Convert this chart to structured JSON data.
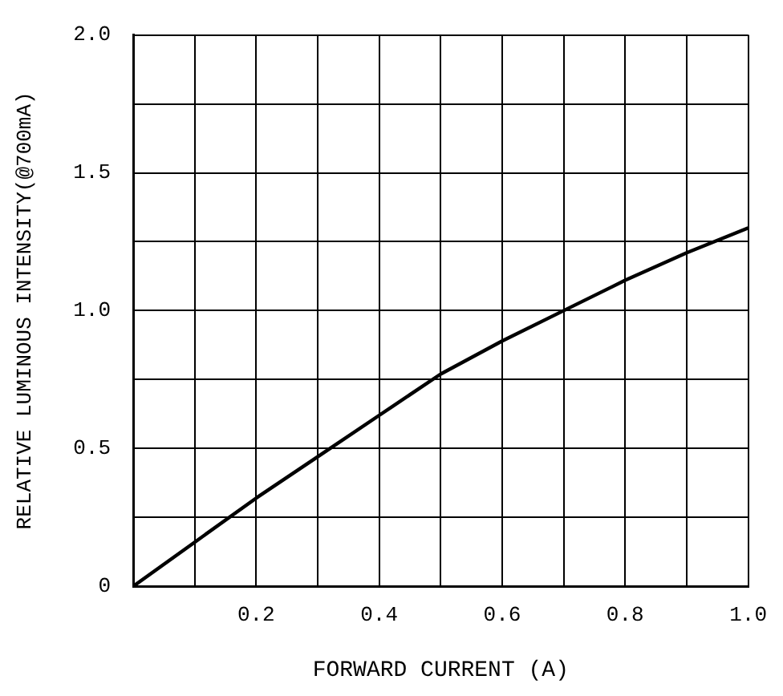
{
  "chart_data": {
    "type": "line",
    "xlabel": "FORWARD CURRENT (A)",
    "ylabel": "RELATIVE LUMINOUS INTENSITY(@700mA)",
    "x": [
      0,
      0.1,
      0.2,
      0.3,
      0.4,
      0.5,
      0.6,
      0.7,
      0.8,
      0.9,
      1.0
    ],
    "series": [
      {
        "color": "#000000",
        "values": [
          0,
          0.16,
          0.32,
          0.47,
          0.62,
          0.77,
          0.89,
          1.0,
          1.11,
          1.21,
          1.3
        ]
      }
    ],
    "xlim": [
      0,
      1.0
    ],
    "ylim": [
      0,
      2.0
    ],
    "xticks": [
      {
        "value": 0,
        "label": null
      },
      {
        "value": 0.1,
        "label": null
      },
      {
        "value": 0.2,
        "label": "0.2"
      },
      {
        "value": 0.3,
        "label": null
      },
      {
        "value": 0.4,
        "label": "0.4"
      },
      {
        "value": 0.5,
        "label": null
      },
      {
        "value": 0.6,
        "label": "0.6"
      },
      {
        "value": 0.7,
        "label": null
      },
      {
        "value": 0.8,
        "label": "0.8"
      },
      {
        "value": 0.9,
        "label": null
      },
      {
        "value": 1.0,
        "label": "1.0"
      }
    ],
    "yticks": [
      {
        "value": 0,
        "label": "0"
      },
      {
        "value": 0.25,
        "label": null
      },
      {
        "value": 0.5,
        "label": "0.5"
      },
      {
        "value": 0.75,
        "label": null
      },
      {
        "value": 1.0,
        "label": "1.0"
      },
      {
        "value": 1.25,
        "label": null
      },
      {
        "value": 1.5,
        "label": "1.5"
      },
      {
        "value": 1.75,
        "label": null
      },
      {
        "value": 2.0,
        "label": "2.0"
      }
    ],
    "grid": true,
    "legend": false,
    "marker": "none",
    "line_style": "solid"
  }
}
